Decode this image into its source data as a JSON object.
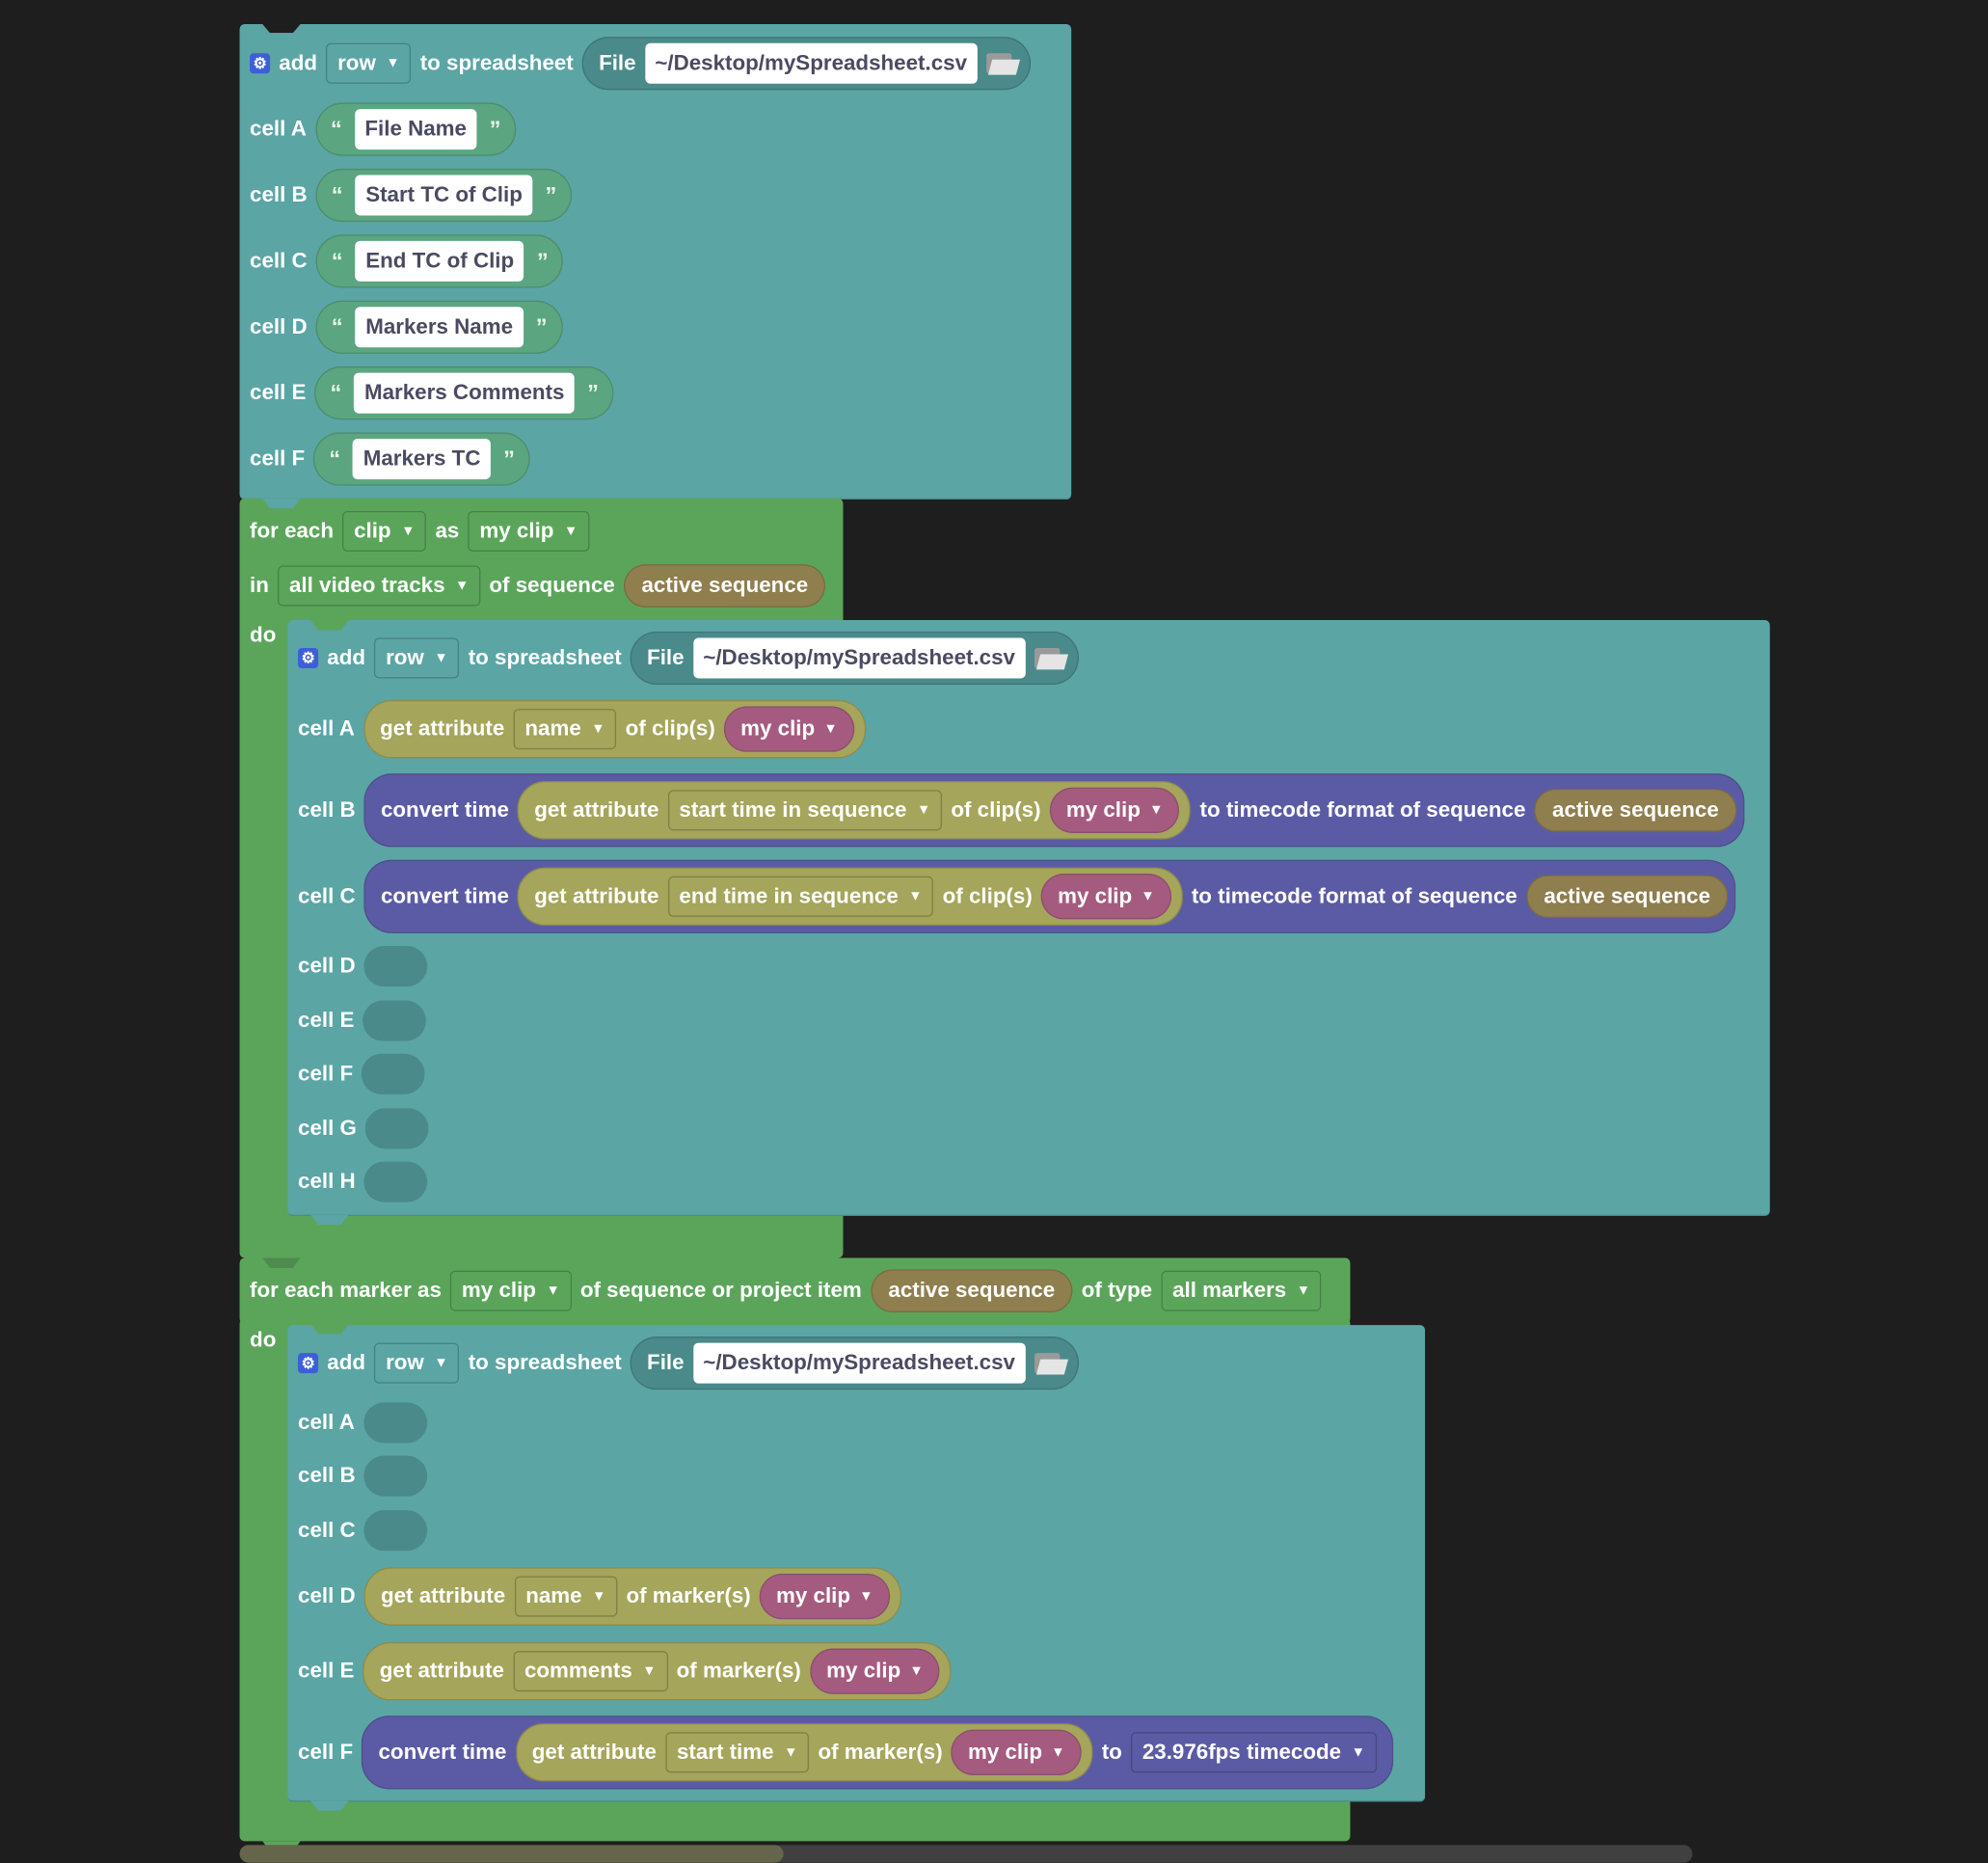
{
  "colors": {
    "background": "#1e1e1e",
    "spreadsheet_block": "#5ba5a5",
    "loop_block": "#5ba55b",
    "text_block": "#5ba580",
    "attribute_block": "#a5a55b",
    "variable_block": "#a55b80",
    "convert_block": "#5b5ba5",
    "sequence_block": "#8f7e4e"
  },
  "header_block": {
    "add": "add",
    "row": "row",
    "to_spreadsheet": "to spreadsheet",
    "file": "File",
    "path": "~/Desktop/mySpreadsheet.csv",
    "cells": [
      {
        "label": "cell A",
        "value": "File Name"
      },
      {
        "label": "cell B",
        "value": "Start TC of Clip"
      },
      {
        "label": "cell C",
        "value": "End TC of Clip"
      },
      {
        "label": "cell D",
        "value": "Markers Name"
      },
      {
        "label": "cell E",
        "value": "Markers Comments"
      },
      {
        "label": "cell F",
        "value": "Markers TC"
      }
    ],
    "open_quote": "“",
    "close_quote": "”"
  },
  "clip_loop": {
    "for_each": "for each",
    "item": "clip",
    "as": "as",
    "var": "my clip",
    "in": "in",
    "tracks": "all video tracks",
    "of_sequence": "of sequence",
    "sequence": "active sequence",
    "do": "do",
    "add_block": {
      "add": "add",
      "row": "row",
      "to_spreadsheet": "to spreadsheet",
      "file": "File",
      "path": "~/Desktop/mySpreadsheet.csv",
      "cell_a": {
        "label": "cell A",
        "get_attribute": "get attribute",
        "attr": "name",
        "of": "of clip(s)",
        "var": "my clip"
      },
      "cell_b": {
        "label": "cell B",
        "convert": "convert time",
        "get_attribute": "get attribute",
        "attr": "start time in sequence",
        "of": "of clip(s)",
        "var": "my clip",
        "to": "to timecode format of sequence",
        "sequence": "active sequence"
      },
      "cell_c": {
        "label": "cell C",
        "convert": "convert time",
        "get_attribute": "get attribute",
        "attr": "end time in sequence",
        "of": "of clip(s)",
        "var": "my clip",
        "to": "to timecode format of sequence",
        "sequence": "active sequence"
      },
      "empty_cells": [
        "cell D",
        "cell E",
        "cell F",
        "cell G",
        "cell H"
      ]
    }
  },
  "marker_loop": {
    "for_each": "for each marker as",
    "var": "my clip",
    "of_item": "of sequence or project item",
    "sequence": "active sequence",
    "of_type": "of type",
    "type": "all markers",
    "do": "do",
    "add_block": {
      "add": "add",
      "row": "row",
      "to_spreadsheet": "to spreadsheet",
      "file": "File",
      "path": "~/Desktop/mySpreadsheet.csv",
      "empty_cells": [
        "cell A",
        "cell B",
        "cell C"
      ],
      "cell_d": {
        "label": "cell D",
        "get_attribute": "get attribute",
        "attr": "name",
        "of": "of marker(s)",
        "var": "my clip"
      },
      "cell_e": {
        "label": "cell E",
        "get_attribute": "get attribute",
        "attr": "comments",
        "of": "of marker(s)",
        "var": "my clip"
      },
      "cell_f": {
        "label": "cell F",
        "convert": "convert time",
        "get_attribute": "get attribute",
        "attr": "start time",
        "of": "of marker(s)",
        "var": "my clip",
        "to": "to",
        "format": "23.976fps timecode"
      }
    }
  }
}
